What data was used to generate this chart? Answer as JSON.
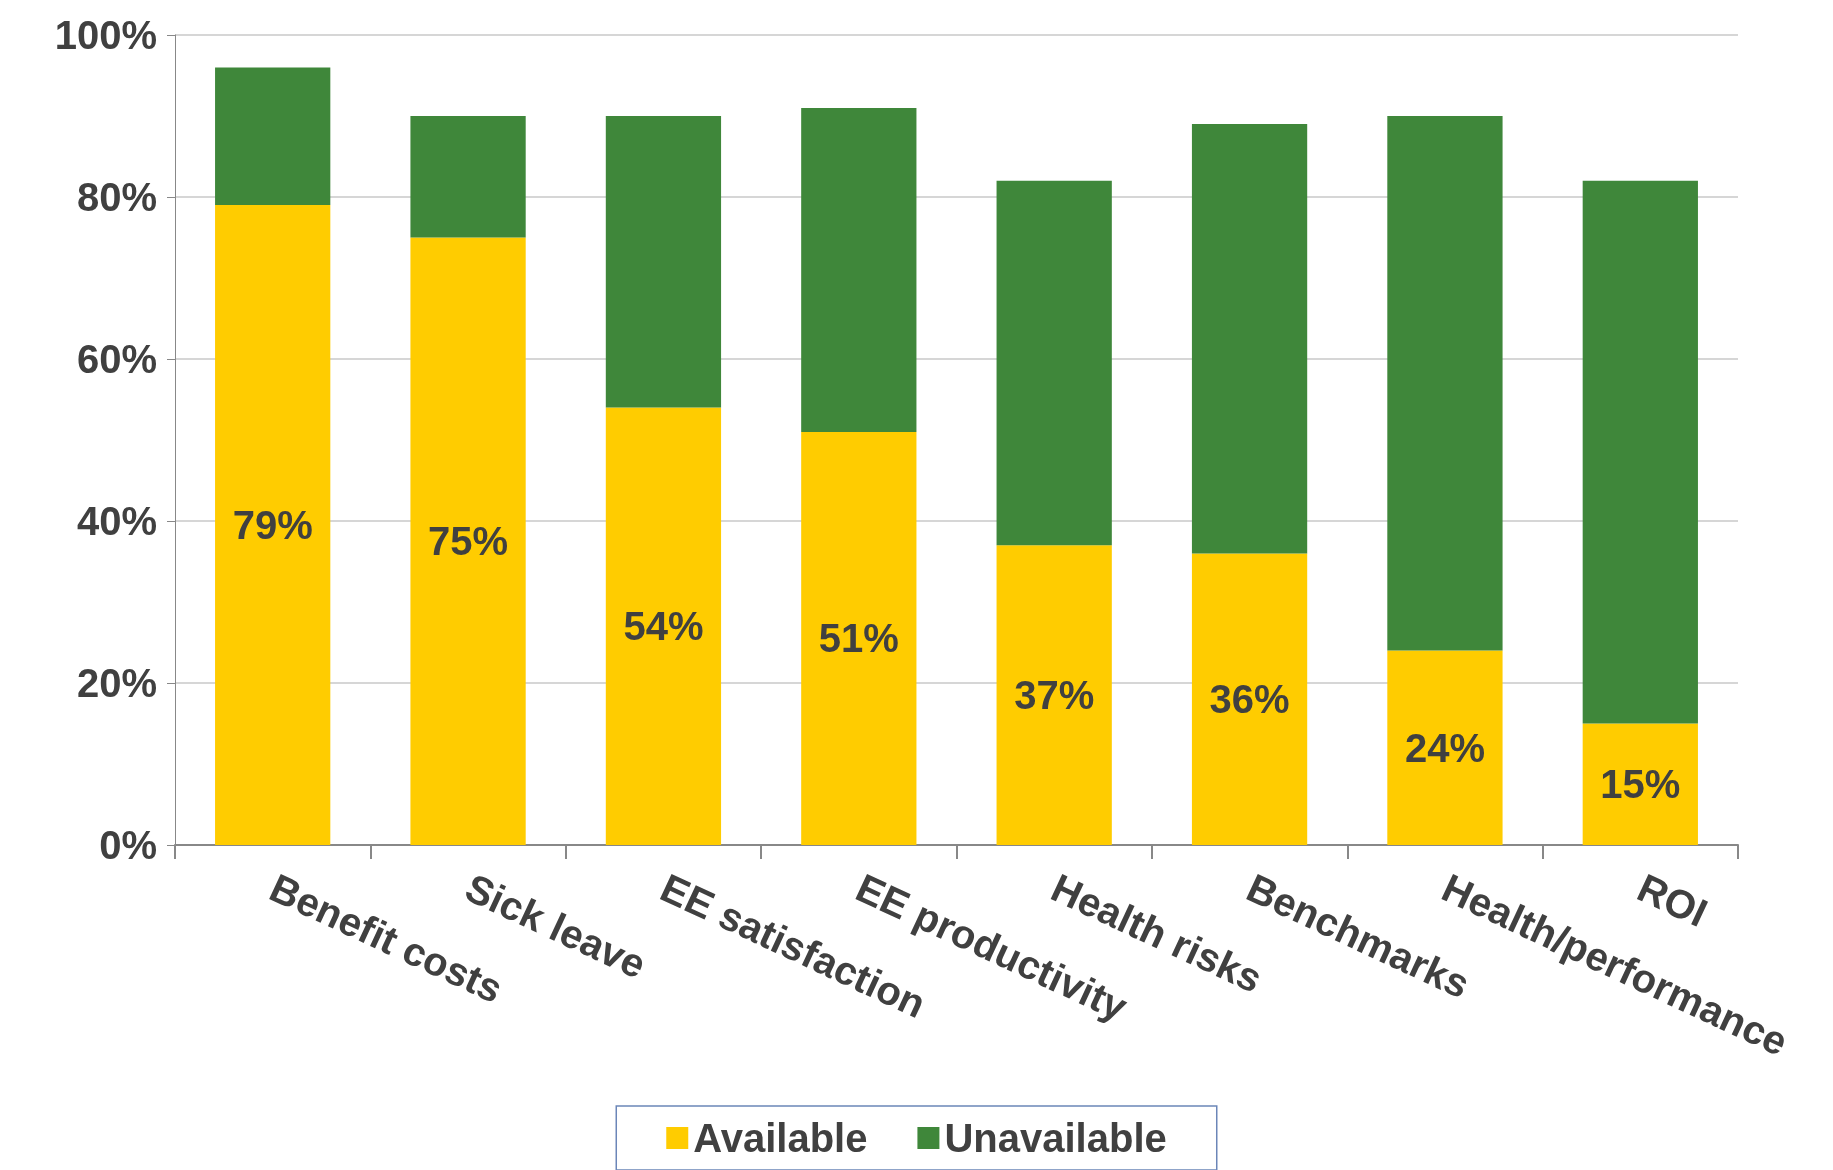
{
  "chart_data": {
    "type": "bar",
    "stacked": true,
    "categories": [
      "Benefit costs",
      "Sick leave",
      "EE satisfaction",
      "EE productivity",
      "Health risks",
      "Benchmarks",
      "Health/performance",
      "ROI"
    ],
    "series": [
      {
        "name": "Available",
        "color": "#ffcc00",
        "values": [
          79,
          75,
          54,
          51,
          37,
          36,
          24,
          15
        ],
        "value_labels": [
          "79%",
          "75%",
          "54%",
          "51%",
          "37%",
          "36%",
          "24%",
          "15%"
        ]
      },
      {
        "name": "Unavailable",
        "color": "#3f873a",
        "values": [
          17,
          15,
          36,
          40,
          45,
          53,
          66,
          67
        ]
      }
    ],
    "ylim": [
      0,
      100
    ],
    "yticks": [
      {
        "value": 0,
        "label": "0%"
      },
      {
        "value": 20,
        "label": "20%"
      },
      {
        "value": 40,
        "label": "40%"
      },
      {
        "value": 60,
        "label": "60%"
      },
      {
        "value": 80,
        "label": "80%"
      },
      {
        "value": 100,
        "label": "100%"
      }
    ],
    "grid": "y",
    "legend": "bottom"
  }
}
